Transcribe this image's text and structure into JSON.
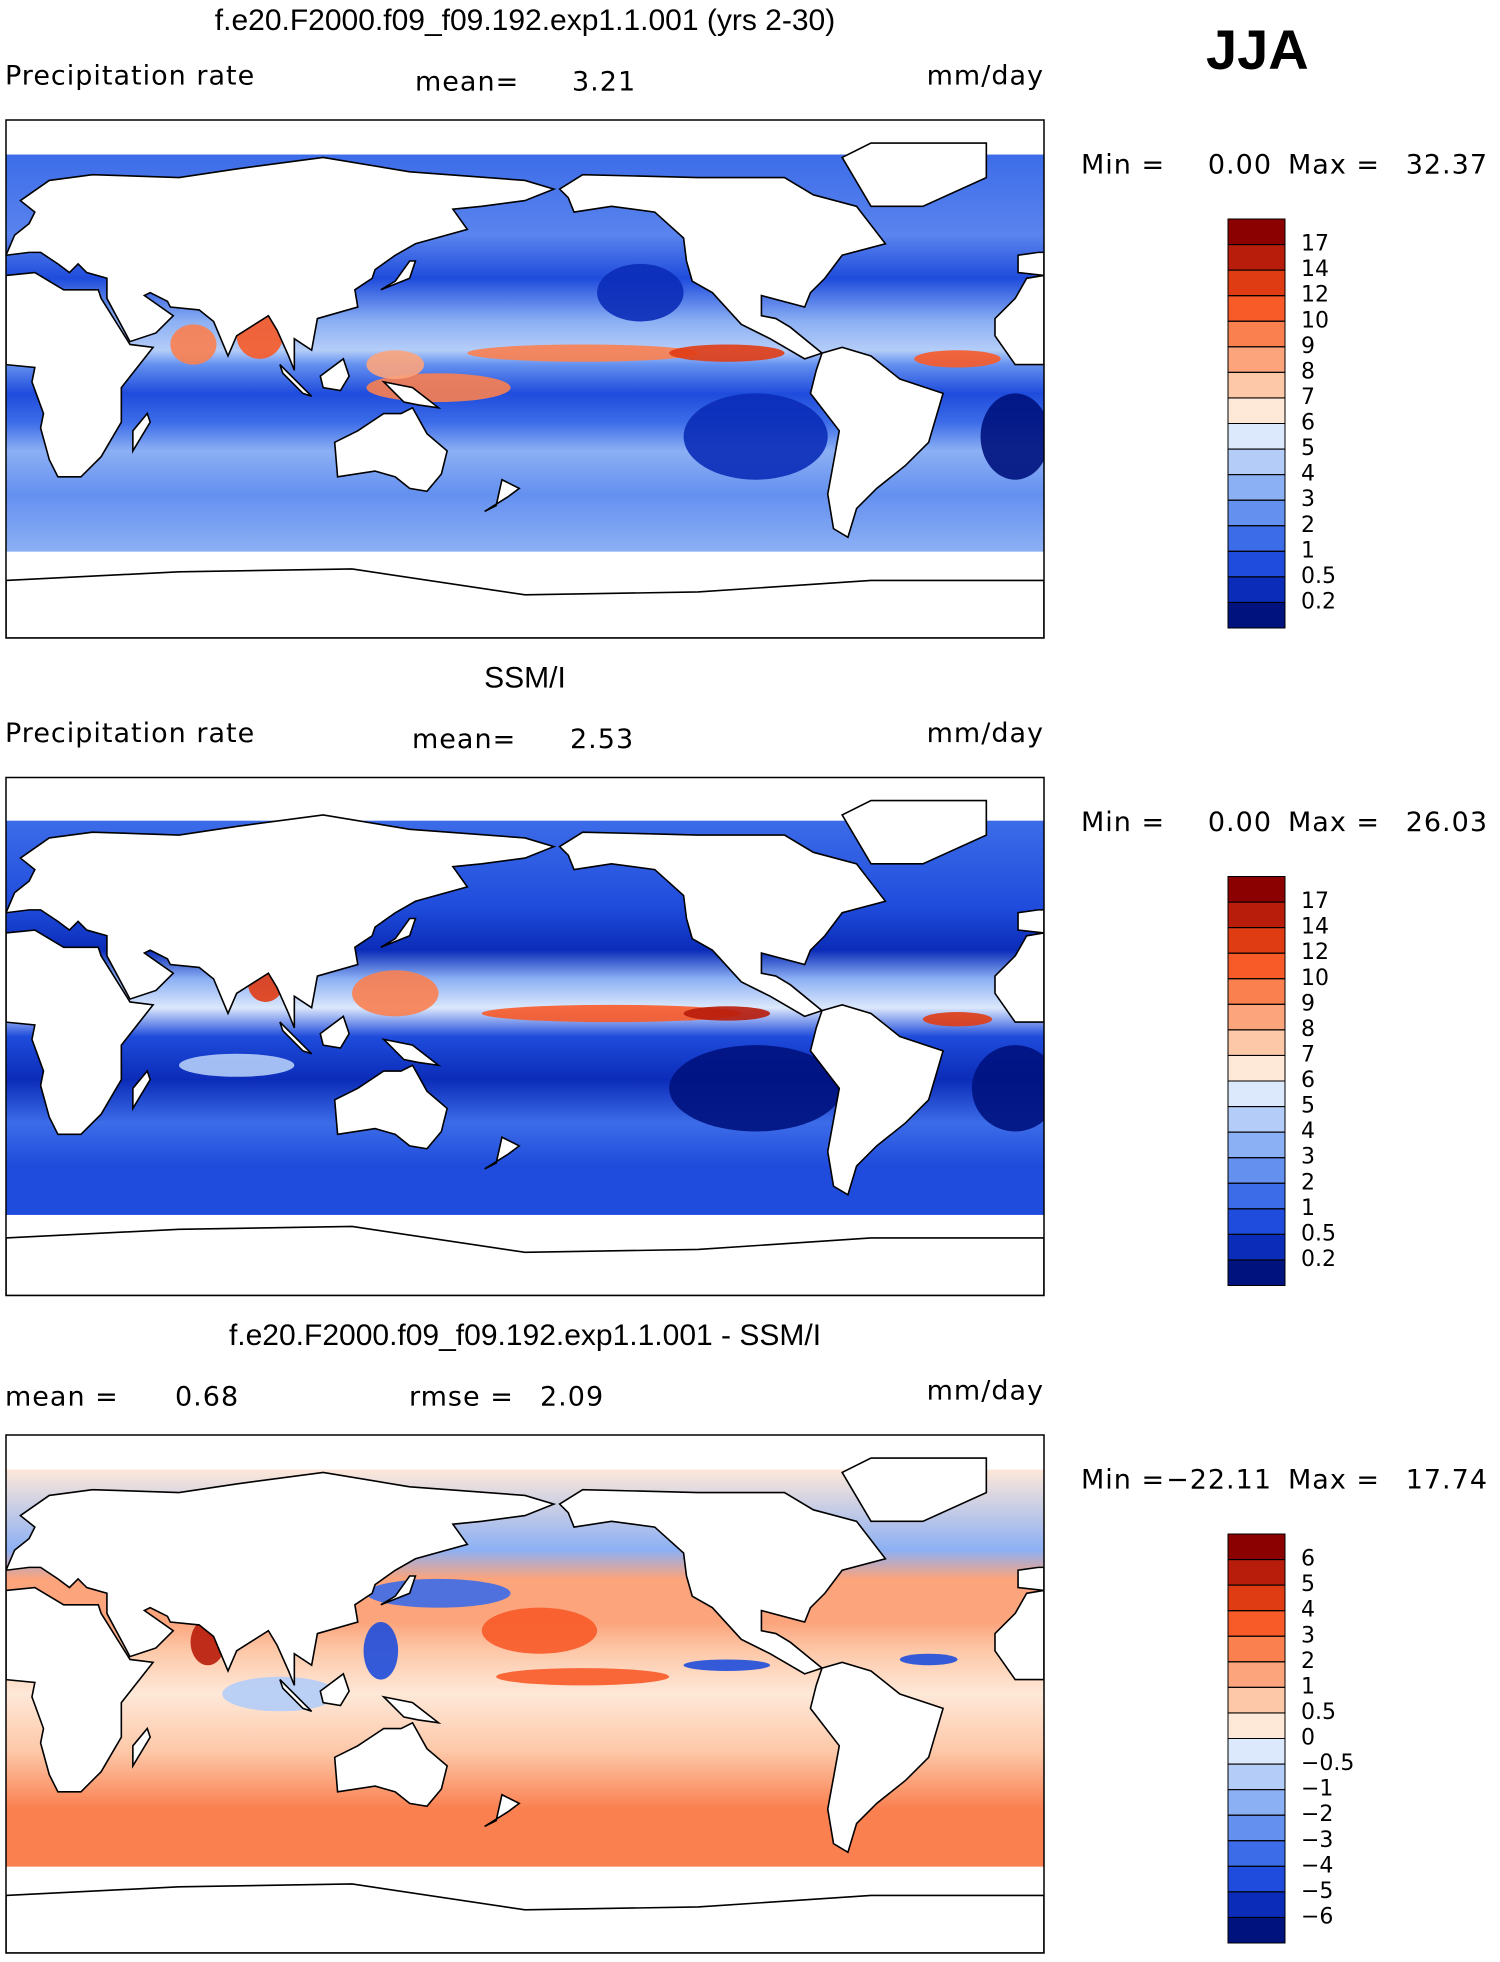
{
  "season": "JJA",
  "panels": [
    {
      "title": "f.e20.F2000.f09_f09.192.exp1.1.001 (yrs 2-30)",
      "field": "Precipitation rate",
      "stats": [
        {
          "label": "mean=",
          "value": 3.21
        }
      ],
      "units": "mm/day",
      "min_label": "Min =",
      "min": {
        "value": 0,
        "label": "0.00"
      },
      "max_label": "Max =",
      "max": 32.37,
      "colorbar": {
        "levels": [
          17,
          14,
          12,
          10,
          9,
          8,
          7,
          6,
          5,
          4,
          3,
          2,
          1,
          0.5,
          0.2
        ],
        "colors": [
          "#8b0000",
          "#b81c0a",
          "#e03c14",
          "#f85a28",
          "#fa8050",
          "#fca47c",
          "#fdc8a8",
          "#fee8d8",
          "#dce8fc",
          "#b4cdf8",
          "#8cb0f4",
          "#6490f0",
          "#3c6ce8",
          "#1f4cdc",
          "#0b2cb8",
          "#00127e"
        ]
      }
    },
    {
      "title": "SSM/I",
      "field": "Precipitation rate",
      "stats": [
        {
          "label": "mean=",
          "value": 2.53
        }
      ],
      "units": "mm/day",
      "min_label": "Min =",
      "min": {
        "value": 0,
        "label": "0.00"
      },
      "max_label": "Max =",
      "max": 26.03,
      "colorbar": {
        "levels": [
          17,
          14,
          12,
          10,
          9,
          8,
          7,
          6,
          5,
          4,
          3,
          2,
          1,
          0.5,
          0.2
        ],
        "colors": [
          "#8b0000",
          "#b81c0a",
          "#e03c14",
          "#f85a28",
          "#fa8050",
          "#fca47c",
          "#fdc8a8",
          "#fee8d8",
          "#dce8fc",
          "#b4cdf8",
          "#8cb0f4",
          "#6490f0",
          "#3c6ce8",
          "#1f4cdc",
          "#0b2cb8",
          "#00127e"
        ]
      }
    },
    {
      "title": "f.e20.F2000.f09_f09.192.exp1.1.001 - SSM/I",
      "stats": [
        {
          "label": "mean =",
          "value": 0.68
        },
        {
          "label": "rmse =",
          "value": 2.09
        }
      ],
      "units": "mm/day",
      "min_label": "Min =",
      "min": {
        "value": -22.11,
        "label": "−22.11"
      },
      "max_label": "Max =",
      "max": 17.74,
      "colorbar": {
        "levels": [
          6,
          5,
          4,
          3,
          2,
          1,
          0.5,
          0,
          {
            "value": -0.5,
            "label": "−0.5"
          },
          {
            "value": -1,
            "label": "−1"
          },
          {
            "value": -2,
            "label": "−2"
          },
          {
            "value": -3,
            "label": "−3"
          },
          {
            "value": -4,
            "label": "−4"
          },
          {
            "value": -5,
            "label": "−5"
          },
          {
            "value": -6,
            "label": "−6"
          }
        ],
        "colors": [
          "#8b0000",
          "#b81c0a",
          "#e03c14",
          "#f85a28",
          "#fa8050",
          "#fca47c",
          "#fdc8a8",
          "#fee8d8",
          "#dce8fc",
          "#b4cdf8",
          "#8cb0f4",
          "#6490f0",
          "#3c6ce8",
          "#1f4cdc",
          "#0b2cb8",
          "#00127e"
        ]
      }
    }
  ]
}
